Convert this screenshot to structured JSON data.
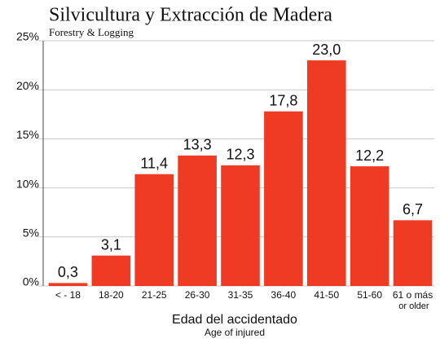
{
  "chart_data": {
    "type": "bar",
    "title": "Silvicultura y Extracción de Madera",
    "subtitle": "Forestry & Logging",
    "x_label": "Edad del accidentado",
    "x_sublabel": "Age of injured",
    "categories": [
      "< - 18",
      "18-20",
      "21-25",
      "26-30",
      "31-35",
      "36-40",
      "41-50",
      "51-60",
      "61 o más"
    ],
    "last_category_note": "or older",
    "values": [
      0.3,
      3.1,
      11.4,
      13.3,
      12.3,
      17.8,
      23.0,
      12.2,
      6.7
    ],
    "value_labels": [
      "0,3",
      "3,1",
      "11,4",
      "13,3",
      "12,3",
      "17,8",
      "23,0",
      "12,2",
      "6,7"
    ],
    "color": "#ef3b24",
    "ylim": [
      0,
      25
    ],
    "yticks": [
      {
        "value": 0,
        "label": "0%"
      },
      {
        "value": 5,
        "label": "5%"
      },
      {
        "value": 10,
        "label": "10%"
      },
      {
        "value": 15,
        "label": "15%"
      },
      {
        "value": 20,
        "label": "20%"
      },
      {
        "value": 25,
        "label": "25%"
      }
    ],
    "grid": true
  }
}
